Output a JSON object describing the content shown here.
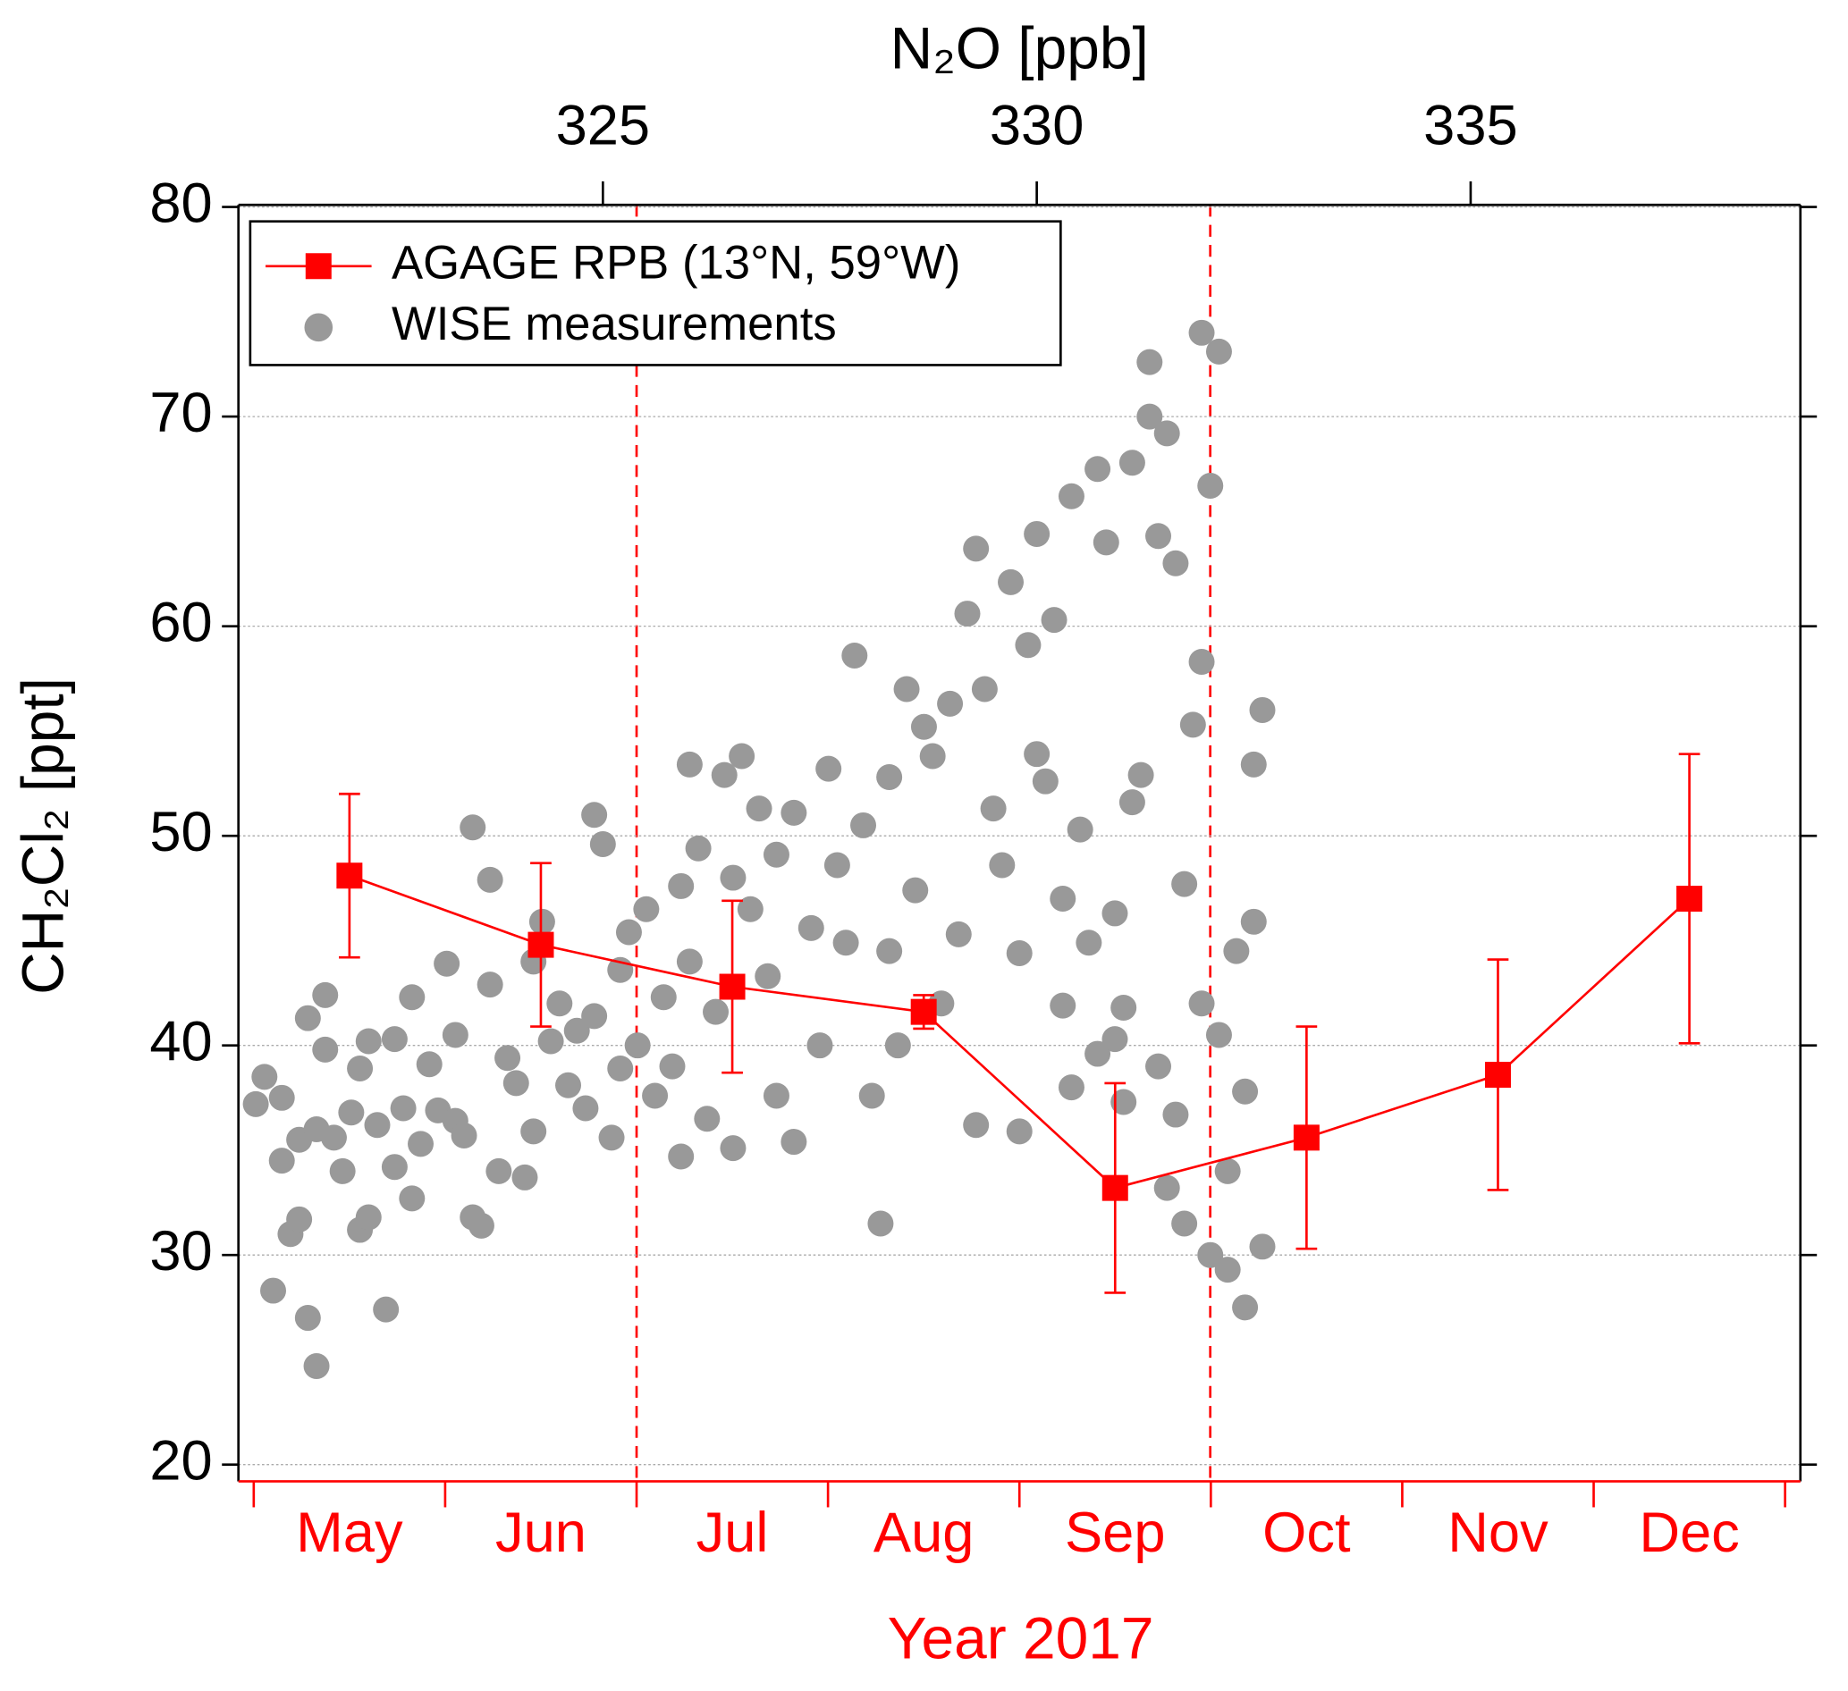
{
  "chart_data": {
    "type": "scatter",
    "x_label": "N₂O [ppb]",
    "y_label": "CH₂Cl₂ [ppt]",
    "x2_label": "Year 2017",
    "xlim": [
      320.8,
      338.8
    ],
    "xticks": [
      325,
      330,
      335
    ],
    "ylim": [
      19.2,
      80.1
    ],
    "yticks": [
      20,
      30,
      40,
      50,
      60,
      70,
      80
    ],
    "grid": true,
    "legend": "upper left",
    "categories": [
      "May",
      "Jun",
      "Jul",
      "Aug",
      "Sep",
      "Oct",
      "Nov",
      "Dec"
    ],
    "series": [
      {
        "name": "AGAGE RPB (13°N, 59°W)",
        "color": "#ff0000",
        "values": [
          48.1,
          44.8,
          42.8,
          41.6,
          33.2,
          35.6,
          38.6,
          47.0
        ],
        "errors": [
          3.9,
          3.9,
          4.1,
          0.8,
          5.0,
          5.3,
          5.5,
          6.9
        ]
      },
      {
        "name": "WISE measurements",
        "color": "#999999",
        "x": [
          321.0,
          321.1,
          321.2,
          321.3,
          321.3,
          321.4,
          321.5,
          321.5,
          321.6,
          321.6,
          321.7,
          321.7,
          321.8,
          321.8,
          321.9,
          322.0,
          322.1,
          322.2,
          322.2,
          322.3,
          322.3,
          322.4,
          322.5,
          322.6,
          322.6,
          322.7,
          322.8,
          322.8,
          322.9,
          323.0,
          323.1,
          323.2,
          323.3,
          323.3,
          323.4,
          323.5,
          323.5,
          323.6,
          323.7,
          323.7,
          323.8,
          323.9,
          324.0,
          324.1,
          324.2,
          324.2,
          324.3,
          324.4,
          324.5,
          324.6,
          324.7,
          324.8,
          324.9,
          324.9,
          325.0,
          325.1,
          325.2,
          325.2,
          325.3,
          325.4,
          325.5,
          325.6,
          325.7,
          325.8,
          325.9,
          325.9,
          326.0,
          326.0,
          326.1,
          326.2,
          326.3,
          326.4,
          326.5,
          326.5,
          326.6,
          326.7,
          326.8,
          326.9,
          327.0,
          327.0,
          327.2,
          327.2,
          327.4,
          327.5,
          327.6,
          327.7,
          327.8,
          327.9,
          328.0,
          328.1,
          328.2,
          328.3,
          328.3,
          328.4,
          328.5,
          328.6,
          328.7,
          328.8,
          328.9,
          329.0,
          329.1,
          329.2,
          329.3,
          329.3,
          329.4,
          329.5,
          329.6,
          329.7,
          329.8,
          329.8,
          329.9,
          330.0,
          330.0,
          330.1,
          330.2,
          330.3,
          330.3,
          330.4,
          330.5,
          330.6,
          330.7,
          330.7,
          330.8,
          330.9,
          331.0,
          331.0,
          331.1,
          331.2,
          331.3,
          331.3,
          331.4,
          331.4,
          331.5,
          331.6,
          331.6,
          331.7,
          331.8,
          331.9,
          331.9,
          332.0,
          332.0,
          332.1,
          332.1,
          332.2,
          332.3,
          332.4,
          332.4,
          332.5,
          332.5,
          332.6,
          332.6,
          331.5,
          331.7,
          331.9,
          332.2,
          331.1,
          330.9,
          330.4
        ],
        "values": [
          37.2,
          38.5,
          28.3,
          34.5,
          37.5,
          31.0,
          31.7,
          35.5,
          41.3,
          27.0,
          24.7,
          36.0,
          42.4,
          39.8,
          35.6,
          34.0,
          36.8,
          38.9,
          31.2,
          40.2,
          31.8,
          36.2,
          27.4,
          34.2,
          40.3,
          37.0,
          32.7,
          42.3,
          35.3,
          39.1,
          36.9,
          43.9,
          40.5,
          36.4,
          35.7,
          50.4,
          31.8,
          31.4,
          47.9,
          42.9,
          34.0,
          39.4,
          38.2,
          33.7,
          44.0,
          35.9,
          45.9,
          40.2,
          42.0,
          38.1,
          40.7,
          37.0,
          51.0,
          41.4,
          49.6,
          35.6,
          43.6,
          38.9,
          45.4,
          40.0,
          46.5,
          37.6,
          42.3,
          39.0,
          47.6,
          34.7,
          53.4,
          44.0,
          49.4,
          36.5,
          41.6,
          52.9,
          48.0,
          35.1,
          53.8,
          46.5,
          51.3,
          43.3,
          37.6,
          49.1,
          35.4,
          51.1,
          45.6,
          40.0,
          53.2,
          48.6,
          44.9,
          58.6,
          50.5,
          37.6,
          31.5,
          44.5,
          52.8,
          40.0,
          57.0,
          47.4,
          55.2,
          53.8,
          42.0,
          56.3,
          45.3,
          60.6,
          63.7,
          36.2,
          57.0,
          51.3,
          48.6,
          62.1,
          35.9,
          44.4,
          59.1,
          53.9,
          64.4,
          52.6,
          60.3,
          41.9,
          47.0,
          66.2,
          50.3,
          44.9,
          67.5,
          39.6,
          64.0,
          46.3,
          37.3,
          41.8,
          67.8,
          52.9,
          70.0,
          72.6,
          64.3,
          39.0,
          69.2,
          63.0,
          36.7,
          47.7,
          55.3,
          74.0,
          58.3,
          66.7,
          30.0,
          73.1,
          40.5,
          29.3,
          44.5,
          27.5,
          37.8,
          45.9,
          53.4,
          56.0,
          30.4,
          33.2,
          31.5,
          42.0,
          34.0,
          51.6,
          40.3,
          38.0
        ]
      }
    ]
  }
}
